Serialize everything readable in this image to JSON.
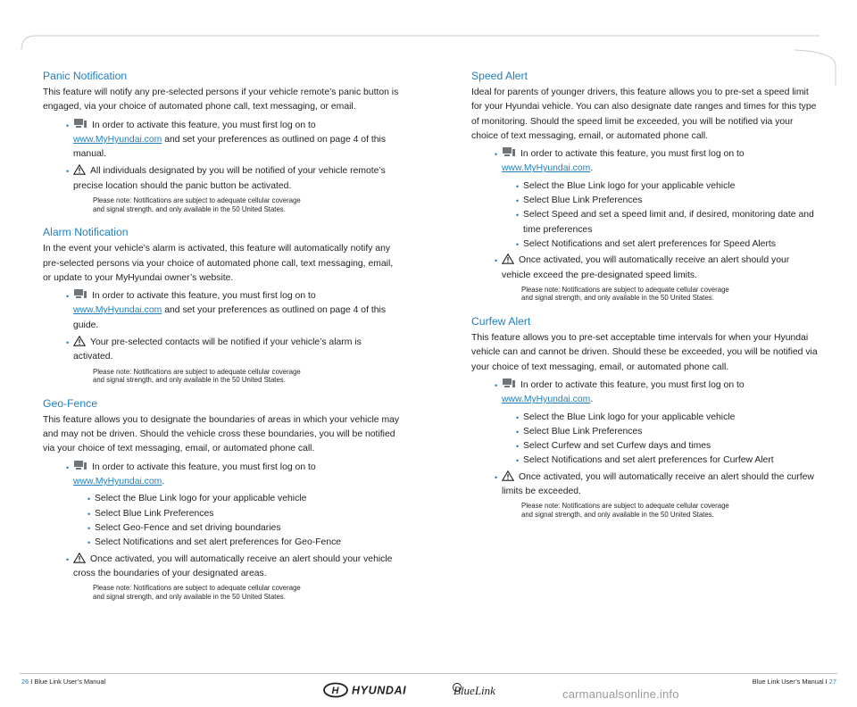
{
  "left": {
    "sections": [
      {
        "title": "Panic Notification",
        "body": "This feature will notify any pre-selected persons if your vehicle remote’s panic button is engaged, via your choice of automated phone call, text messaging, or email.",
        "computer_text": "In order to activate this feature, you must first log on to",
        "link": "www.MyHyundai.com",
        "computer_tail": " and set your preferences as outlined on page 4 of this manual.",
        "alert_text": "All individuals designated by you will be notified of your vehicle remote’s precise location should the panic button be activated.",
        "note": "Please note: Notifications are subject to adequate cellular coverage\nand signal strength, and only available in the 50 United States."
      },
      {
        "title": "Alarm Notification",
        "body": "In the event your vehicle’s alarm is activated, this feature will automatically notify any pre-selected persons via your choice of automated phone call, text messaging, email, or update to your MyHyundai owner’s website.",
        "computer_text": "In order to activate this feature, you must first log on to",
        "link": "www.MyHyundai.com",
        "computer_tail": " and set your preferences as outlined on page 4 of this guide.",
        "alert_text": "Your pre-selected contacts will be notified if your vehicle’s alarm is activated.",
        "note": "Please note: Notifications are subject to adequate cellular coverage\nand signal strength, and only available in the 50 United States."
      },
      {
        "title": "Geo-Fence",
        "body": "This feature allows you to designate the boundaries of areas in which your vehicle may and may not be driven. Should the vehicle cross these boundaries, you will be notified via your choice of text messaging, email, or automated phone call.",
        "computer_text": "In order to activate this feature, you must first log on to",
        "link": "www.MyHyundai.com",
        "computer_tail": ".",
        "steps": [
          "Select the Blue Link logo for your applicable vehicle",
          "Select Blue Link Preferences",
          "Select Geo-Fence and set driving boundaries",
          "Select Notifications and set alert preferences for Geo-Fence"
        ],
        "alert_text": "Once activated, you will automatically receive an alert should your vehicle cross the boundaries of your designated areas.",
        "note": "Please note: Notifications are subject to adequate cellular coverage\nand signal strength, and only available in the 50 United States."
      }
    ]
  },
  "right": {
    "sections": [
      {
        "title": "Speed Alert",
        "body": "Ideal for parents of younger drivers, this feature allows you to pre-set a speed limit for your Hyundai vehicle. You can also designate date ranges and times for this type of monitoring. Should the speed limit be exceeded, you will be notified via your choice of text messaging, email, or automated phone call.",
        "computer_text": "In order to activate this feature, you must first log on to",
        "link": "www.MyHyundai.com",
        "computer_tail": ".",
        "steps": [
          "Select the Blue Link logo for your applicable vehicle",
          "Select Blue Link Preferences",
          "Select Speed and set a speed limit and, if desired, monitoring date and time preferences",
          "Select Notifications and set alert preferences for Speed Alerts"
        ],
        "alert_text": "Once activated, you will automatically receive an alert should your vehicle exceed the pre-designated speed limits.",
        "note": "Please note: Notifications are subject to adequate cellular coverage\nand signal strength, and only available in the 50 United States."
      },
      {
        "title": "Curfew Alert",
        "body": "This feature allows you to pre-set acceptable time intervals for when your Hyundai vehicle can and cannot be driven. Should these be exceeded, you will be notified via your choice of text messaging, email, or automated phone call.",
        "computer_text": "In order to activate this feature, you must first log on to",
        "link": "www.MyHyundai.com",
        "computer_tail": ".",
        "steps": [
          "Select the Blue Link logo for your applicable vehicle",
          "Select Blue Link Preferences",
          "Select Curfew and set Curfew days and times",
          "Select Notifications and set alert preferences for Curfew Alert"
        ],
        "alert_text": "Once activated, you will automatically receive an alert should the curfew limits be exceeded.",
        "note": "Please note: Notifications are subject to adequate cellular coverage\nand signal strength, and only available in the 50 United States."
      }
    ]
  },
  "footer": {
    "left_page": "26",
    "left_text": "I  Blue Link User’s Manual",
    "right_text": "Blue Link User’s Manual  I",
    "right_page": "27",
    "brand_logo": "HYUNDAI",
    "product_logo": "BlueLink",
    "watermark": "carmanualsonline.info"
  },
  "colors": {
    "accent": "#1f7fc0",
    "text": "#231f20",
    "rule": "#bfc3c7"
  },
  "icons": {
    "computer": "computer-icon",
    "alert": "warning-triangle-icon"
  }
}
